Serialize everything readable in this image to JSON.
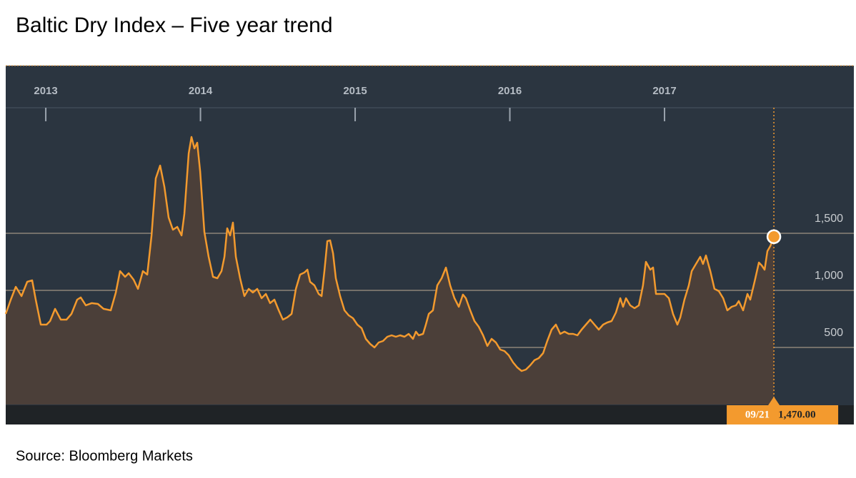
{
  "chart_data": {
    "type": "line",
    "title": "Baltic Dry Index – Five year trend",
    "source": "Source: Bloomberg Markets",
    "color": "#f39a2e",
    "annotation": {
      "x_label": "09/21",
      "value_label": "1,470.00"
    },
    "xlim": [
      2012.741,
      2018.224
    ],
    "xticks": [
      2013,
      2014,
      2015,
      2016,
      2017
    ],
    "ylim": [
      0,
      2600
    ],
    "yticks": [
      500,
      {
        "value": 1000,
        "label": "1,000"
      },
      {
        "value": 1500,
        "label": "1,500"
      }
    ],
    "grid": true,
    "x": [
      2012.741,
      2012.774,
      2012.806,
      2012.843,
      2012.88,
      2012.912,
      2012.935,
      2012.968,
      2013.005,
      2013.028,
      2013.06,
      2013.097,
      2013.134,
      2013.166,
      2013.203,
      2013.226,
      2013.259,
      2013.296,
      2013.337,
      2013.374,
      2013.42,
      2013.453,
      2013.48,
      2013.513,
      2013.536,
      2013.568,
      2013.596,
      2013.628,
      2013.656,
      2013.684,
      2013.711,
      2013.739,
      2013.767,
      2013.794,
      2013.822,
      2013.85,
      2013.878,
      2013.896,
      2013.924,
      2013.942,
      2013.961,
      2013.979,
      2013.998,
      2014.025,
      2014.053,
      2014.081,
      2014.109,
      2014.136,
      2014.155,
      2014.173,
      2014.192,
      2014.21,
      2014.229,
      2014.256,
      2014.284,
      2014.312,
      2014.339,
      2014.367,
      2014.395,
      2014.423,
      2014.45,
      2014.478,
      2014.506,
      2014.533,
      2014.561,
      2014.589,
      2014.617,
      2014.644,
      2014.672,
      2014.691,
      2014.709,
      2014.737,
      2014.764,
      2014.783,
      2014.801,
      2014.82,
      2014.838,
      2014.857,
      2014.875,
      2014.903,
      2014.931,
      2014.958,
      2014.986,
      2015.014,
      2015.042,
      2015.069,
      2015.097,
      2015.125,
      2015.152,
      2015.18,
      2015.208,
      2015.236,
      2015.263,
      2015.291,
      2015.319,
      2015.346,
      2015.374,
      2015.393,
      2015.411,
      2015.439,
      2015.457,
      2015.476,
      2015.503,
      2015.531,
      2015.559,
      2015.587,
      2015.614,
      2015.642,
      2015.67,
      2015.697,
      2015.716,
      2015.744,
      2015.771,
      2015.799,
      2015.827,
      2015.855,
      2015.882,
      2015.91,
      2015.938,
      2015.965,
      2015.993,
      2016.021,
      2016.048,
      2016.076,
      2016.104,
      2016.132,
      2016.159,
      2016.187,
      2016.215,
      2016.242,
      2016.27,
      2016.298,
      2016.326,
      2016.353,
      2016.381,
      2016.409,
      2016.437,
      2016.464,
      2016.492,
      2016.52,
      2016.547,
      2016.575,
      2016.603,
      2016.63,
      2016.658,
      2016.686,
      2016.714,
      2016.732,
      2016.751,
      2016.778,
      2016.806,
      2016.834,
      2016.861,
      2016.88,
      2016.908,
      2016.926,
      2016.945,
      2016.972,
      2017.0,
      2017.028,
      2017.055,
      2017.083,
      2017.102,
      2017.129,
      2017.157,
      2017.176,
      2017.203,
      2017.231,
      2017.249,
      2017.268,
      2017.296,
      2017.323,
      2017.351,
      2017.379,
      2017.406,
      2017.434,
      2017.462,
      2017.48,
      2017.508,
      2017.536,
      2017.554,
      2017.582,
      2017.61,
      2017.628,
      2017.647,
      2017.665,
      2017.684,
      2017.707
    ],
    "values": [
      794,
      919,
      1031,
      950,
      1075,
      1088,
      919,
      700,
      700,
      731,
      838,
      744,
      744,
      794,
      919,
      938,
      869,
      888,
      881,
      838,
      825,
      981,
      1169,
      1119,
      1150,
      1094,
      1013,
      1169,
      1138,
      1481,
      1981,
      2094,
      1906,
      1638,
      1531,
      1556,
      1481,
      1669,
      2200,
      2344,
      2244,
      2294,
      2044,
      1513,
      1294,
      1119,
      1106,
      1169,
      1294,
      1544,
      1481,
      1594,
      1294,
      1106,
      950,
      1013,
      981,
      1013,
      931,
      969,
      888,
      919,
      825,
      744,
      763,
      794,
      1013,
      1138,
      1156,
      1181,
      1075,
      1044,
      969,
      950,
      1169,
      1431,
      1438,
      1325,
      1106,
      950,
      825,
      781,
      756,
      700,
      669,
      575,
      531,
      500,
      544,
      556,
      594,
      606,
      594,
      606,
      594,
      619,
      575,
      638,
      606,
      619,
      700,
      794,
      825,
      1044,
      1106,
      1200,
      1044,
      931,
      856,
      963,
      931,
      825,
      731,
      681,
      606,
      513,
      575,
      544,
      481,
      469,
      431,
      369,
      325,
      294,
      306,
      344,
      388,
      406,
      450,
      556,
      656,
      700,
      619,
      638,
      619,
      619,
      606,
      656,
      700,
      744,
      700,
      656,
      700,
      719,
      731,
      806,
      931,
      856,
      931,
      869,
      844,
      869,
      1044,
      1250,
      1181,
      1200,
      969,
      969,
      969,
      931,
      794,
      700,
      763,
      919,
      1044,
      1169,
      1231,
      1294,
      1231,
      1306,
      1169,
      1013,
      994,
      931,
      825,
      856,
      869,
      906,
      825,
      969,
      919,
      1075,
      1244,
      1219,
      1181,
      1344,
      1388,
      1470
    ]
  }
}
